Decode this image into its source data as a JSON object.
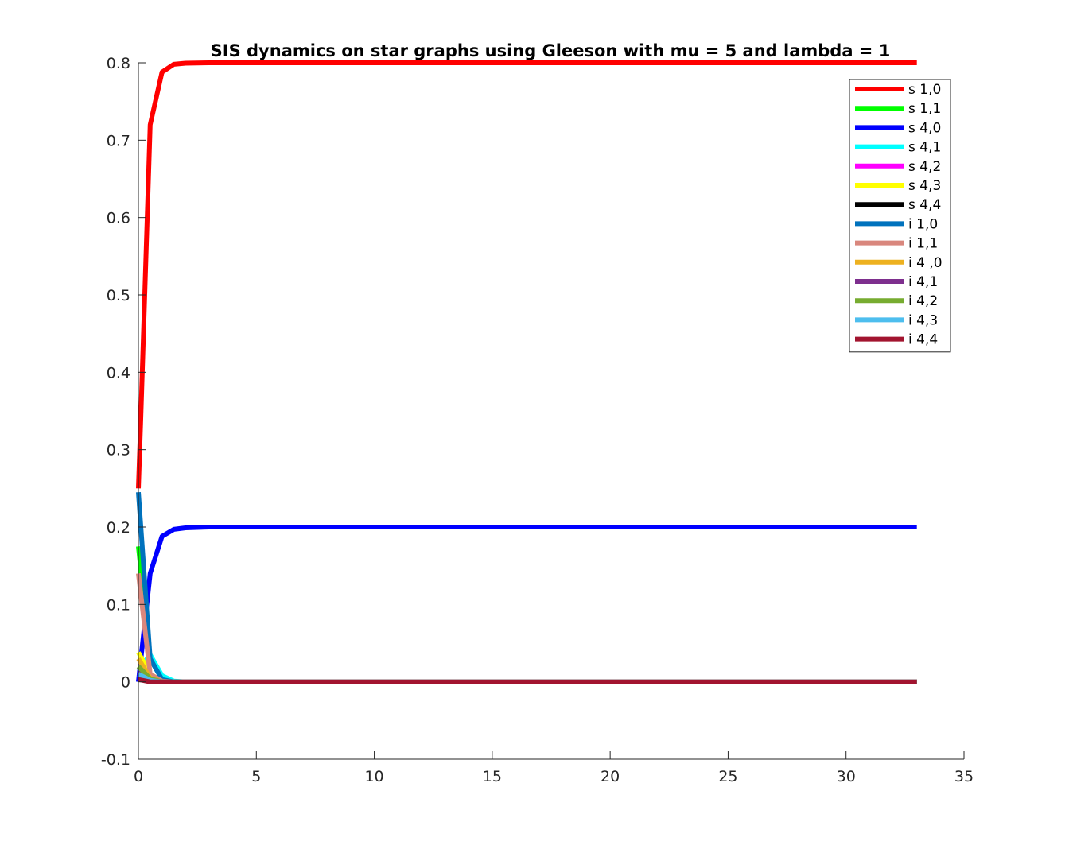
{
  "chart_data": {
    "type": "line",
    "title": "SIS dynamics on star graphs using Gleeson with mu = 5 and lambda = 1",
    "xlabel": "",
    "ylabel": "",
    "xlim": [
      0,
      35
    ],
    "ylim": [
      -0.1,
      0.8
    ],
    "xticks": [
      0,
      5,
      10,
      15,
      20,
      25,
      30,
      35
    ],
    "yticks": [
      -0.1,
      0,
      0.1,
      0.2,
      0.3,
      0.4,
      0.5,
      0.6,
      0.7,
      0.8
    ],
    "xtick_labels": [
      "0",
      "5",
      "10",
      "15",
      "20",
      "25",
      "30",
      "35"
    ],
    "ytick_labels": [
      "-0.1",
      "0",
      "0.1",
      "0.2",
      "0.3",
      "0.4",
      "0.5",
      "0.6",
      "0.7",
      "0.8"
    ],
    "grid": false,
    "legend_position": "top-right",
    "series": [
      {
        "name": "s 1,0",
        "color": "#ff0000",
        "points": [
          [
            0,
            0.25
          ],
          [
            0.1,
            0.34
          ],
          [
            0.5,
            0.72
          ],
          [
            1,
            0.788
          ],
          [
            1.5,
            0.798
          ],
          [
            2,
            0.7995
          ],
          [
            3,
            0.8
          ],
          [
            33,
            0.8
          ]
        ]
      },
      {
        "name": "s 1,1",
        "color": "#00ff00",
        "points": [
          [
            0,
            0.175
          ],
          [
            0.5,
            0.03
          ],
          [
            1,
            0.004
          ],
          [
            1.5,
            0.0005
          ],
          [
            2,
            0
          ],
          [
            33,
            0
          ]
        ]
      },
      {
        "name": "s 4,0",
        "color": "#0000ff",
        "points": [
          [
            0,
            0.0
          ],
          [
            0.5,
            0.14
          ],
          [
            1,
            0.188
          ],
          [
            1.5,
            0.197
          ],
          [
            2,
            0.199
          ],
          [
            3,
            0.2
          ],
          [
            33,
            0.2
          ]
        ]
      },
      {
        "name": "s 4,1",
        "color": "#00ffff",
        "points": [
          [
            0,
            0.015
          ],
          [
            0.5,
            0.035
          ],
          [
            1,
            0.008
          ],
          [
            1.5,
            0.001
          ],
          [
            2,
            0
          ],
          [
            33,
            0
          ]
        ]
      },
      {
        "name": "s 4,2",
        "color": "#ff00ff",
        "points": [
          [
            0,
            0.02
          ],
          [
            0.5,
            0.008
          ],
          [
            1,
            0.001
          ],
          [
            1.5,
            0
          ],
          [
            33,
            0
          ]
        ]
      },
      {
        "name": "s 4,3",
        "color": "#ffff00",
        "points": [
          [
            0,
            0.038
          ],
          [
            0.5,
            0.01
          ],
          [
            1,
            0.001
          ],
          [
            1.5,
            0
          ],
          [
            33,
            0
          ]
        ]
      },
      {
        "name": "s 4,4",
        "color": "#000000",
        "points": [
          [
            0,
            0.005
          ],
          [
            0.5,
            0.002
          ],
          [
            1,
            0
          ],
          [
            33,
            0
          ]
        ]
      },
      {
        "name": "i 1,0",
        "color": "#0072bd",
        "points": [
          [
            0,
            0.245
          ],
          [
            0.5,
            0.03
          ],
          [
            1,
            0.003
          ],
          [
            1.5,
            0
          ],
          [
            33,
            0
          ]
        ]
      },
      {
        "name": "i 1,1",
        "color": "#d9877d",
        "points": [
          [
            0,
            0.14
          ],
          [
            0.5,
            0.01
          ],
          [
            1,
            0.001
          ],
          [
            1.5,
            0
          ],
          [
            33,
            0
          ]
        ]
      },
      {
        "name": "i 4 ,0",
        "color": "#edb120",
        "points": [
          [
            0,
            0.03
          ],
          [
            0.5,
            0.005
          ],
          [
            1,
            0
          ],
          [
            33,
            0
          ]
        ]
      },
      {
        "name": "i 4,1",
        "color": "#7e2f8e",
        "points": [
          [
            0,
            0.012
          ],
          [
            0.5,
            0.003
          ],
          [
            1,
            0
          ],
          [
            33,
            0
          ]
        ]
      },
      {
        "name": "i 4,2",
        "color": "#77ac30",
        "points": [
          [
            0,
            0.02
          ],
          [
            0.5,
            0.004
          ],
          [
            1,
            0
          ],
          [
            33,
            0
          ]
        ]
      },
      {
        "name": "i 4,3",
        "color": "#4dbeee",
        "points": [
          [
            0,
            0.01
          ],
          [
            0.5,
            0.002
          ],
          [
            1,
            0
          ],
          [
            33,
            0
          ]
        ]
      },
      {
        "name": "i 4,4",
        "color": "#a2142f",
        "points": [
          [
            0,
            0.003
          ],
          [
            0.5,
            0.0
          ],
          [
            1,
            0
          ],
          [
            33,
            0
          ]
        ]
      }
    ]
  }
}
